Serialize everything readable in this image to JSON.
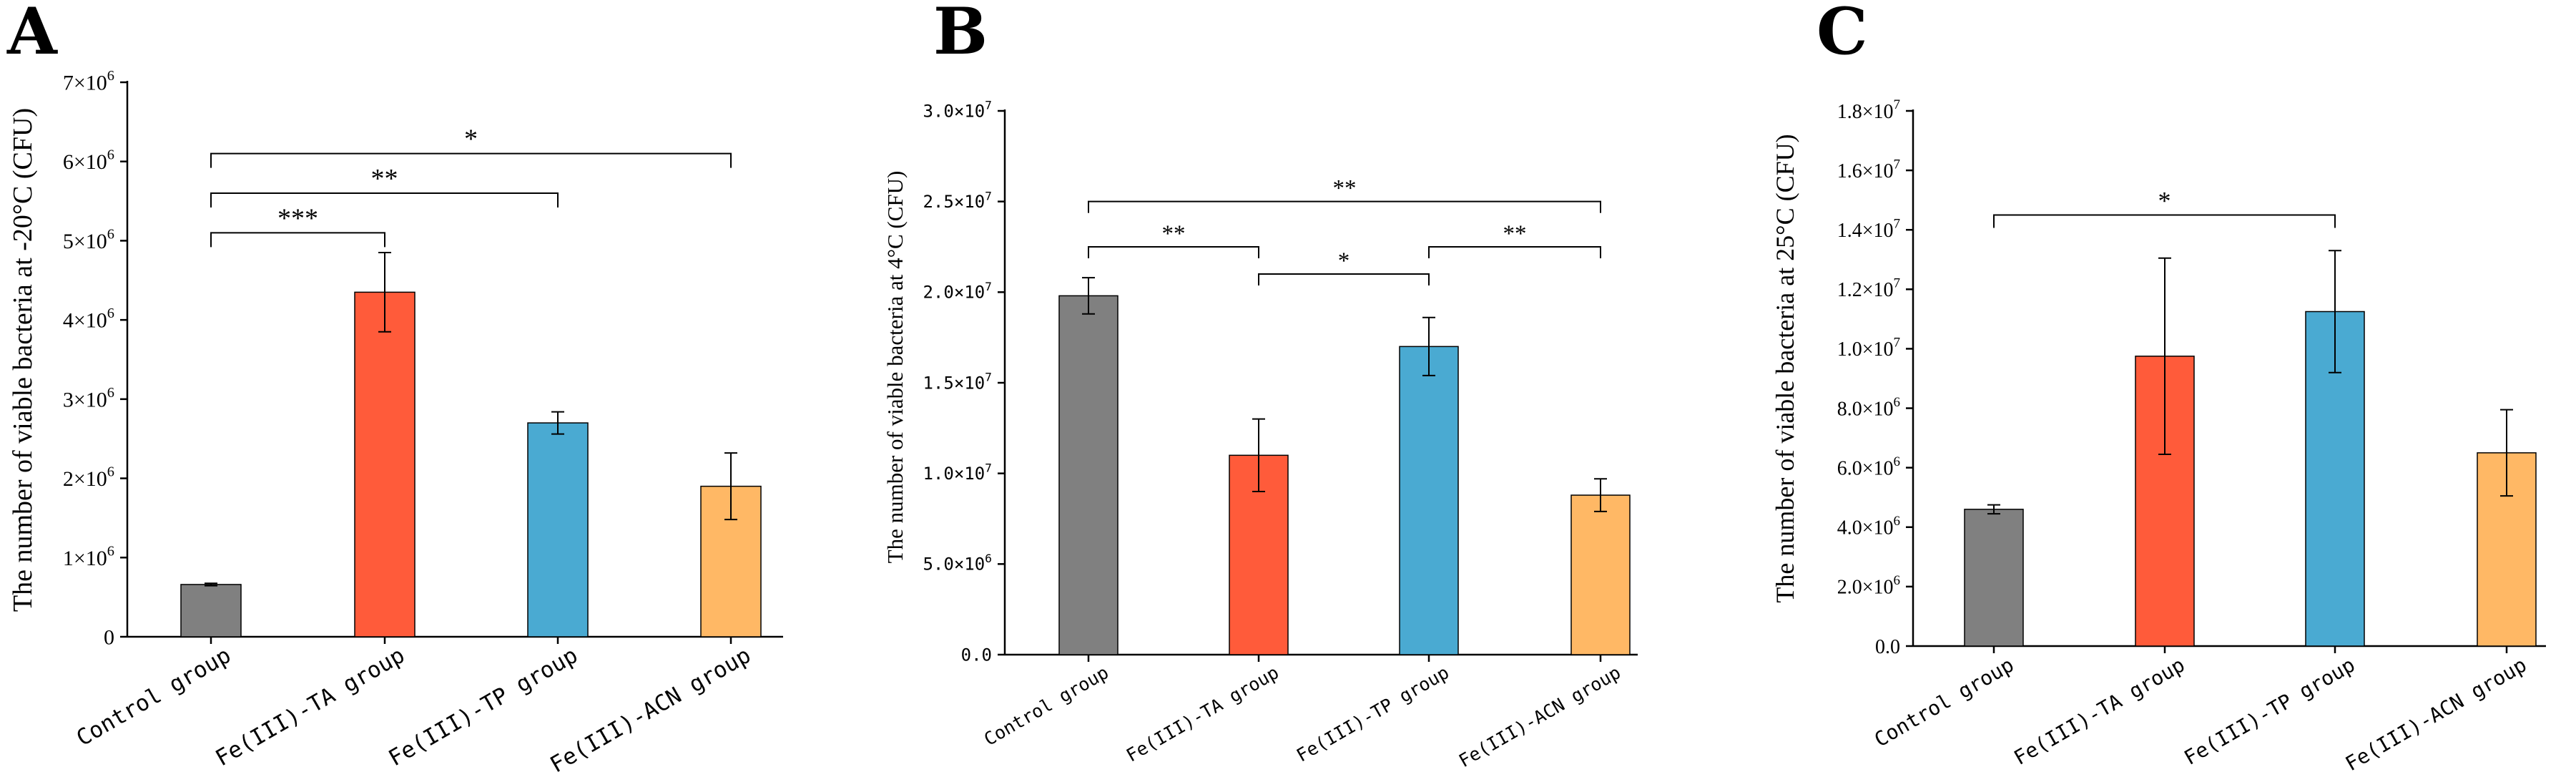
{
  "chart_data": [
    {
      "panel": "A",
      "type": "bar",
      "ylabel": "The number of viable bacteria at -20°C (CFU)",
      "xlabel": "",
      "categories": [
        "Control group",
        "Fe(III)-TA group",
        "Fe(III)-TP group",
        "Fe(III)-ACN group"
      ],
      "values": [
        660000,
        4350000,
        2700000,
        1900000
      ],
      "errors": [
        15000,
        500000,
        140000,
        420000
      ],
      "colors": [
        "#808080",
        "#ff5b3a",
        "#4aaad2",
        "#ffb865"
      ],
      "ylim": [
        0,
        7000000
      ],
      "yticks": [
        0,
        1000000,
        2000000,
        3000000,
        4000000,
        5000000,
        6000000,
        7000000
      ],
      "ytick_labels": [
        {
          "coef": "0",
          "exp": ""
        },
        {
          "coef": "1×10",
          "exp": "6"
        },
        {
          "coef": "2×10",
          "exp": "6"
        },
        {
          "coef": "3×10",
          "exp": "6"
        },
        {
          "coef": "4×10",
          "exp": "6"
        },
        {
          "coef": "5×10",
          "exp": "6"
        },
        {
          "coef": "6×10",
          "exp": "6"
        },
        {
          "coef": "7×10",
          "exp": "6"
        }
      ],
      "significance": [
        {
          "from": 0,
          "to": 1,
          "y": 5100000,
          "label": "***"
        },
        {
          "from": 0,
          "to": 2,
          "y": 5600000,
          "label": "**"
        },
        {
          "from": 0,
          "to": 3,
          "y": 6100000,
          "label": "*"
        }
      ]
    },
    {
      "panel": "B",
      "type": "bar",
      "ylabel": "The number of viable bacteria at 4°C (CFU)",
      "xlabel": "",
      "categories": [
        "Control group",
        "Fe(III)-TA group",
        "Fe(III)-TP group",
        "Fe(III)-ACN group"
      ],
      "values": [
        19800000,
        11000000,
        17000000,
        8800000
      ],
      "errors": [
        1000000,
        2000000,
        1600000,
        900000
      ],
      "colors": [
        "#808080",
        "#ff5b3a",
        "#4aaad2",
        "#ffb865"
      ],
      "ylim": [
        0,
        30000000
      ],
      "yticks": [
        0,
        5000000,
        10000000,
        15000000,
        20000000,
        25000000,
        30000000
      ],
      "ytick_labels": [
        {
          "coef": "0.0",
          "exp": ""
        },
        {
          "coef": "5.0×10",
          "exp": "6"
        },
        {
          "coef": "1.0×10",
          "exp": "7"
        },
        {
          "coef": "1.5×10",
          "exp": "7"
        },
        {
          "coef": "2.0×10",
          "exp": "7"
        },
        {
          "coef": "2.5×10",
          "exp": "7"
        },
        {
          "coef": "3.0×10",
          "exp": "7"
        }
      ],
      "significance": [
        {
          "from": 1,
          "to": 2,
          "y": 21000000,
          "label": "*"
        },
        {
          "from": 0,
          "to": 1,
          "y": 22500000,
          "label": "**"
        },
        {
          "from": 2,
          "to": 3,
          "y": 22500000,
          "label": "**"
        },
        {
          "from": 0,
          "to": 3,
          "y": 25000000,
          "label": "**"
        }
      ]
    },
    {
      "panel": "C",
      "type": "bar",
      "ylabel": "The number of viable bacteria at 25°C (CFU)",
      "xlabel": "",
      "categories": [
        "Control group",
        "Fe(III)-TA group",
        "Fe(III)-TP group",
        "Fe(III)-ACN group"
      ],
      "values": [
        4600000,
        9750000,
        11250000,
        6500000
      ],
      "errors": [
        150000,
        3300000,
        2050000,
        1450000
      ],
      "colors": [
        "#808080",
        "#ff5b3a",
        "#4aaad2",
        "#ffb865"
      ],
      "ylim": [
        0,
        18000000
      ],
      "yticks": [
        0,
        2000000,
        4000000,
        6000000,
        8000000,
        10000000,
        12000000,
        14000000,
        16000000,
        18000000
      ],
      "ytick_labels": [
        {
          "coef": "0.0",
          "exp": ""
        },
        {
          "coef": "2.0×10",
          "exp": "6"
        },
        {
          "coef": "4.0×10",
          "exp": "6"
        },
        {
          "coef": "6.0×10",
          "exp": "6"
        },
        {
          "coef": "8.0×10",
          "exp": "6"
        },
        {
          "coef": "1.0×10",
          "exp": "7"
        },
        {
          "coef": "1.2×10",
          "exp": "7"
        },
        {
          "coef": "1.4×10",
          "exp": "7"
        },
        {
          "coef": "1.6×10",
          "exp": "7"
        },
        {
          "coef": "1.8×10",
          "exp": "7"
        }
      ],
      "significance": [
        {
          "from": 0,
          "to": 2,
          "y": 14500000,
          "label": "*"
        }
      ]
    }
  ]
}
